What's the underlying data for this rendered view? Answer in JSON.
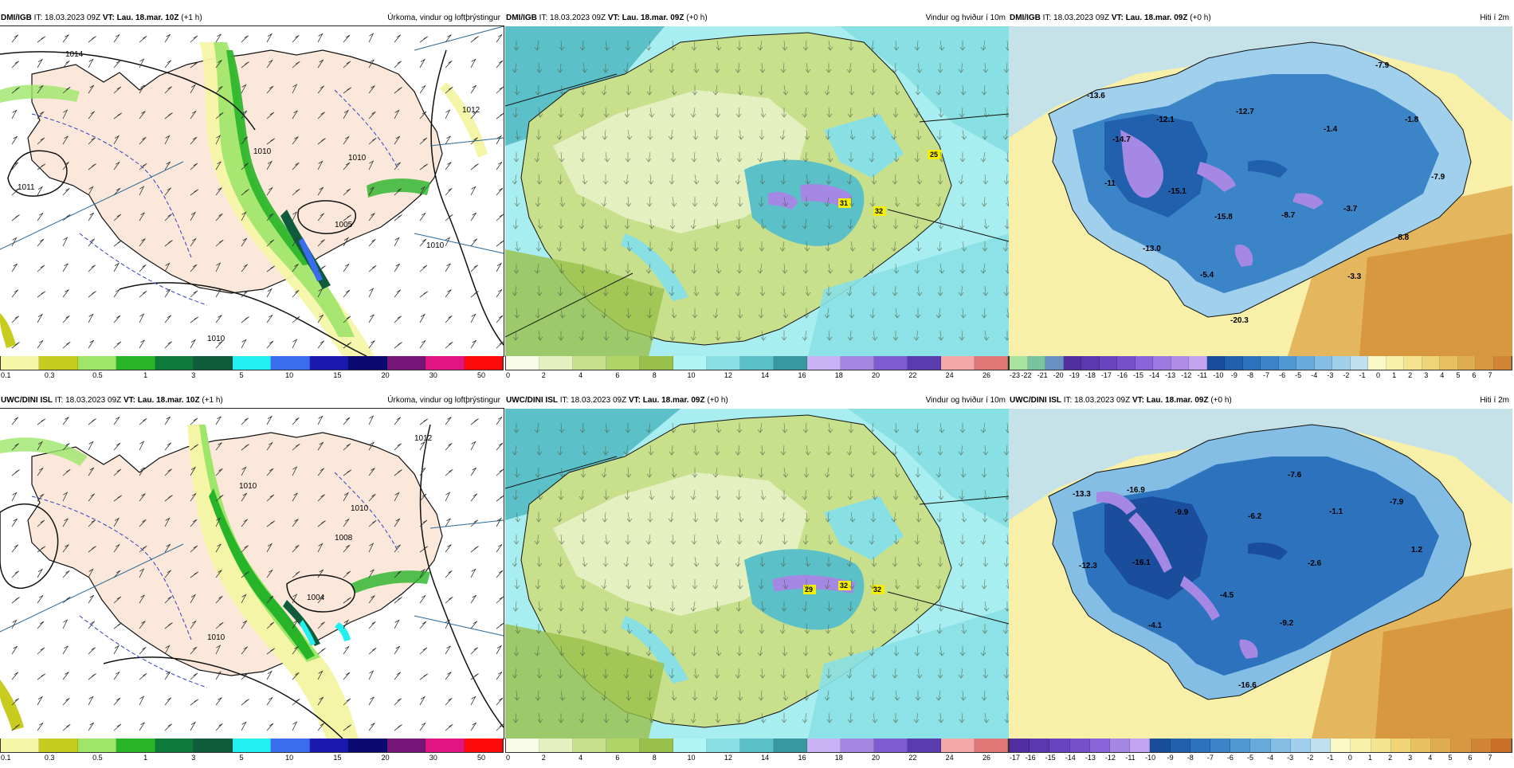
{
  "panels": [
    {
      "id": "p1",
      "source": "DMI/IGB",
      "it_label": "IT:",
      "it_value": "18.03.2023 09Z",
      "vt_label": "VT:",
      "vt_value": "Lau. 18.mar. 10Z",
      "lead": "(+1 h)",
      "field": "Úrkoma, vindur og loftþrýstingur",
      "colorbar": {
        "colors": [
          "#f5f5a8",
          "#c7cc1e",
          "#9ee66a",
          "#28b428",
          "#0e7a3a",
          "#0e5c3c",
          "#22f0f0",
          "#3a6cf0",
          "#1a1ab0",
          "#0a0a70",
          "#781478",
          "#e01482",
          "#ff0a0a"
        ],
        "ticks": [
          "0.1",
          "0.3",
          "0.5",
          "1",
          "3",
          "5",
          "10",
          "15",
          "20",
          "30",
          "50"
        ]
      },
      "pressure_labels": [
        "1014",
        "1011",
        "1010",
        "1010",
        "1005",
        "1010",
        "1012",
        "1010"
      ]
    },
    {
      "id": "p2",
      "source": "DMI/IGB",
      "it_label": "IT:",
      "it_value": "18.03.2023 09Z",
      "vt_label": "VT:",
      "vt_value": "Lau. 18.mar. 09Z",
      "lead": "(+0 h)",
      "field": "Vindur og hviður í 10m",
      "colorbar": {
        "colors": [
          "#f8fce8",
          "#e4f0c0",
          "#c8e08c",
          "#b0d468",
          "#98c04a",
          "#b0f4f4",
          "#88e0e4",
          "#5cc0c8",
          "#3898a0",
          "#c8b4f4",
          "#a488e4",
          "#7c5cd0",
          "#5a3cb0",
          "#f4a8a8",
          "#e07878"
        ],
        "ticks": [
          "0",
          "2",
          "4",
          "6",
          "8",
          "10",
          "12",
          "14",
          "16",
          "18",
          "20",
          "22",
          "24",
          "26"
        ]
      },
      "gust_labels": [
        "25",
        "31",
        "32"
      ]
    },
    {
      "id": "p3",
      "source": "DMI/IGB",
      "it_label": "IT:",
      "it_value": "18.03.2023 09Z",
      "vt_label": "VT:",
      "vt_value": "Lau. 18.mar. 09Z",
      "lead": "(+0 h)",
      "field": "Hiti í 2m",
      "colorbar": {
        "colors": [
          "#a8e4a0",
          "#78c4a0",
          "#6890c0",
          "#5030a0",
          "#5a38b0",
          "#6844c0",
          "#7850cc",
          "#8a64d8",
          "#9c78e0",
          "#b08ce8",
          "#c4a4f0",
          "#1a4e9c",
          "#2060ac",
          "#2c72bc",
          "#3c84c8",
          "#5098d4",
          "#68aadc",
          "#84bee4",
          "#a0d0ec",
          "#c0e0f0",
          "#fbf8c8",
          "#f8f0a8",
          "#f4e490",
          "#f0d478",
          "#e8c060",
          "#e0ac50",
          "#d89840",
          "#d08434"
        ],
        "ticks": [
          "-23",
          "-22",
          "-21",
          "-20",
          "-19",
          "-18",
          "-17",
          "-16",
          "-15",
          "-14",
          "-13",
          "-12",
          "-11",
          "-10",
          "-9",
          "-8",
          "-7",
          "-6",
          "-5",
          "-4",
          "-3",
          "-2",
          "-1",
          "0",
          "1",
          "2",
          "3",
          "4",
          "5",
          "6",
          "7"
        ]
      },
      "temp_labels": [
        "-13.6",
        "-14.7",
        "-12.1",
        "-12.7",
        "-1.4",
        "-7.9",
        "-1.8",
        "-7.9",
        "-11",
        "-15.1",
        "-15.8",
        "-8.7",
        "-3.7",
        "-8.8",
        "-13.0",
        "-5.4",
        "-3.3",
        "-20.3"
      ]
    },
    {
      "id": "p4",
      "source": "UWC/DINI ISL",
      "it_label": "IT:",
      "it_value": "18.03.2023 09Z",
      "vt_label": "VT:",
      "vt_value": "Lau. 18.mar. 10Z",
      "lead": "(+1 h)",
      "field": "Úrkoma, vindur og loftþrýstingur",
      "colorbar": {
        "colors": [
          "#f5f5a8",
          "#c7cc1e",
          "#9ee66a",
          "#28b428",
          "#0e7a3a",
          "#0e5c3c",
          "#22f0f0",
          "#3a6cf0",
          "#1a1ab0",
          "#0a0a70",
          "#781478",
          "#e01482",
          "#ff0a0a"
        ],
        "ticks": [
          "0.1",
          "0.3",
          "0.5",
          "1",
          "3",
          "5",
          "10",
          "15",
          "20",
          "30",
          "50"
        ]
      },
      "pressure_labels": [
        "1010",
        "1012",
        "1008",
        "1004",
        "1010",
        "1010"
      ]
    },
    {
      "id": "p5",
      "source": "UWC/DINI ISL",
      "it_label": "IT:",
      "it_value": "18.03.2023 09Z",
      "vt_label": "VT:",
      "vt_value": "Lau. 18.mar. 09Z",
      "lead": "(+0 h)",
      "field": "Vindur og hviður í 10m",
      "colorbar": {
        "colors": [
          "#f8fce8",
          "#e4f0c0",
          "#c8e08c",
          "#b0d468",
          "#98c04a",
          "#b0f4f4",
          "#88e0e4",
          "#5cc0c8",
          "#3898a0",
          "#c8b4f4",
          "#a488e4",
          "#7c5cd0",
          "#5a3cb0",
          "#f4a8a8",
          "#e07878"
        ],
        "ticks": [
          "0",
          "2",
          "4",
          "6",
          "8",
          "10",
          "12",
          "14",
          "16",
          "18",
          "20",
          "22",
          "24",
          "26"
        ]
      },
      "gust_labels": [
        "29",
        "32",
        "32"
      ]
    },
    {
      "id": "p6",
      "source": "UWC/DINI ISL",
      "it_label": "IT:",
      "it_value": "18.03.2023 09Z",
      "vt_label": "VT:",
      "vt_value": "Lau. 18.mar. 09Z",
      "lead": "(+0 h)",
      "field": "Hiti í 2m",
      "colorbar": {
        "colors": [
          "#5030a0",
          "#5a38b0",
          "#6844c0",
          "#7850cc",
          "#8a64d8",
          "#a488e4",
          "#c4a4f0",
          "#1a4e9c",
          "#2060ac",
          "#2c72bc",
          "#3c84c8",
          "#5098d4",
          "#68aadc",
          "#84bee4",
          "#a0d0ec",
          "#c0e0f0",
          "#fbf8c8",
          "#f8f0a8",
          "#f4e490",
          "#f0d478",
          "#e8c060",
          "#e0ac50",
          "#d89840",
          "#d08434",
          "#c87028"
        ],
        "ticks": [
          "-17",
          "-16",
          "-15",
          "-14",
          "-13",
          "-12",
          "-11",
          "-10",
          "-9",
          "-8",
          "-7",
          "-6",
          "-5",
          "-4",
          "-3",
          "-2",
          "-1",
          "0",
          "1",
          "2",
          "3",
          "4",
          "5",
          "6",
          "7"
        ]
      },
      "temp_labels": [
        "-13.3",
        "-16.9",
        "-9.9",
        "-7.6",
        "-6.2",
        "-1.1",
        "-7.9",
        "-12.3",
        "-16.1",
        "-4.5",
        "-2.6",
        "1.2",
        "-4.1",
        "-9.2",
        "-16.6"
      ]
    }
  ]
}
